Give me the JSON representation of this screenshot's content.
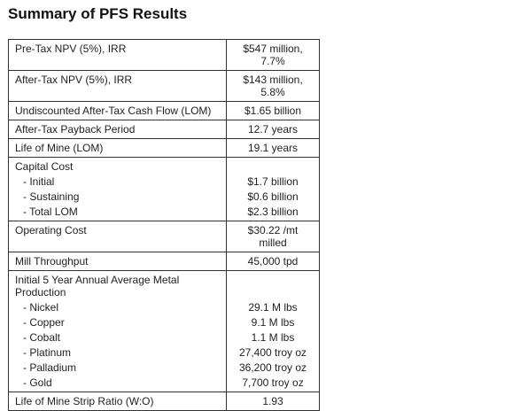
{
  "header": {
    "title": "Summary of PFS Results"
  },
  "table": {
    "rows": [
      {
        "label": "Pre-Tax NPV (5%), IRR",
        "value": "$547 million, 7.7%"
      },
      {
        "label": "After-Tax NPV (5%), IRR",
        "value": "$143 million, 5.8%"
      },
      {
        "label": "Undiscounted After-Tax Cash Flow (LOM)",
        "value": "$1.65 billion"
      },
      {
        "label": "After-Tax Payback Period",
        "value": "12.7 years"
      },
      {
        "label": "Life of Mine (LOM)",
        "value": "19.1 years"
      },
      {
        "label": "Capital Cost",
        "items": [
          {
            "label": "- Initial",
            "value": "$1.7 billion"
          },
          {
            "label": "- Sustaining",
            "value": "$0.6 billion"
          },
          {
            "label": "- Total LOM",
            "value": "$2.3 billion"
          }
        ]
      },
      {
        "label": "Operating Cost",
        "value": "$30.22 /mt milled"
      },
      {
        "label": "Mill Throughput",
        "value": "45,000 tpd"
      },
      {
        "label": "Initial 5 Year Annual Average Metal Production",
        "items": [
          {
            "label": "- Nickel",
            "value": "29.1 M lbs"
          },
          {
            "label": "- Copper",
            "value": "9.1 M lbs"
          },
          {
            "label": "- Cobalt",
            "value": "1.1 M lbs"
          },
          {
            "label": "- Platinum",
            "value": "27,400 troy oz"
          },
          {
            "label": "- Palladium",
            "value": "36,200 troy oz"
          },
          {
            "label": "- Gold",
            "value": "7,700 troy oz"
          }
        ]
      },
      {
        "label": "Life of Mine Strip Ratio (W:O)",
        "value": "1.93"
      }
    ]
  }
}
